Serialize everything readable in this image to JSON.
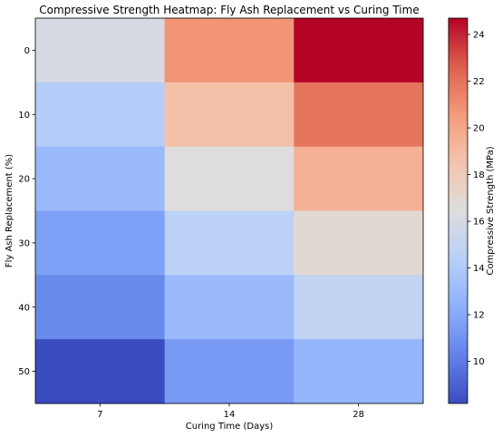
{
  "chart_data": {
    "type": "heatmap",
    "title": "Compressive Strength Heatmap: Fly Ash Replacement vs Curing Time",
    "xlabel": "Curing Time (Days)",
    "ylabel": "Fly Ash Replacement (%)",
    "x_categories": [
      "7",
      "14",
      "28"
    ],
    "y_categories": [
      "0",
      "10",
      "20",
      "30",
      "40",
      "50"
    ],
    "values": [
      [
        16.0,
        20.8,
        24.7
      ],
      [
        14.2,
        18.7,
        21.9
      ],
      [
        13.0,
        16.5,
        19.5
      ],
      [
        11.6,
        14.6,
        16.9
      ],
      [
        10.6,
        13.0,
        14.9
      ],
      [
        8.2,
        11.3,
        12.7
      ]
    ],
    "colorbar": {
      "label": "Compressive Strength (MPa)",
      "vmin": 8.2,
      "vmax": 24.7,
      "ticks": [
        10,
        12,
        14,
        16,
        18,
        20,
        22,
        24
      ],
      "colormap": "coolwarm"
    }
  }
}
